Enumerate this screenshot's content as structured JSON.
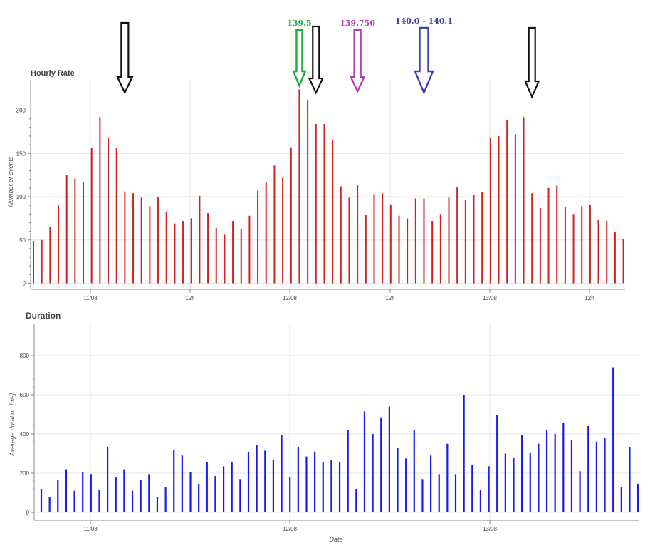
{
  "chart_data": [
    {
      "type": "bar",
      "title": "Hourly Rate",
      "ylabel": "Number of events",
      "xlabel": "",
      "ylim": [
        -7,
        235
      ],
      "yticks": [
        0,
        50,
        100,
        150,
        200
      ],
      "x_tick_labels": [
        "11/08",
        "12h",
        "12/08",
        "12h",
        "13/08",
        "12h"
      ],
      "grid": true,
      "color": "#cc2222",
      "values": [
        49,
        50,
        65,
        90,
        125,
        121,
        117,
        156,
        192,
        168,
        156,
        106,
        104,
        99,
        89,
        100,
        83,
        69,
        72,
        75,
        101,
        81,
        64,
        56,
        72,
        63,
        78,
        107,
        117,
        136,
        122,
        157,
        224,
        211,
        184,
        184,
        166,
        112,
        99,
        114,
        79,
        103,
        104,
        91,
        78,
        75,
        98,
        98,
        72,
        80,
        99,
        111,
        96,
        102,
        105,
        168,
        170,
        189,
        172,
        192,
        104,
        87,
        110,
        113,
        88,
        80,
        89,
        91,
        73,
        72,
        59,
        51
      ],
      "annotations": [
        {
          "text": "",
          "color": "#111111",
          "bar_index": 11
        },
        {
          "text": "139.5",
          "color": "#22aa44",
          "bar_index": 32
        },
        {
          "text": "",
          "color": "#111111",
          "bar_index": 34
        },
        {
          "text": "139.750",
          "color": "#b040b0",
          "bar_index": 39
        },
        {
          "text": "140.0 - 140.1",
          "color": "#3a44aa",
          "bar_index": 47
        },
        {
          "text": "",
          "color": "#111111",
          "bar_index": 60
        }
      ]
    },
    {
      "type": "bar",
      "title": "Duration",
      "ylabel": "Average duration [ms]",
      "xlabel": "Date",
      "ylim": [
        -40,
        960
      ],
      "yticks": [
        0,
        200,
        400,
        600,
        800
      ],
      "x_tick_labels": [
        "11/08",
        "12/08",
        "13/08"
      ],
      "grid": true,
      "color": "#1a1aee",
      "values": [
        120,
        80,
        165,
        220,
        110,
        205,
        195,
        115,
        335,
        180,
        220,
        110,
        165,
        195,
        80,
        130,
        320,
        290,
        205,
        145,
        255,
        185,
        235,
        255,
        170,
        310,
        345,
        315,
        270,
        395,
        180,
        335,
        285,
        310,
        255,
        265,
        255,
        420,
        120,
        515,
        400,
        485,
        540,
        330,
        275,
        420,
        170,
        290,
        195,
        350,
        195,
        600,
        240,
        115,
        235,
        495,
        300,
        280,
        395,
        305,
        350,
        420,
        400,
        455,
        370,
        210,
        440,
        360,
        380,
        740,
        130,
        335,
        145
      ]
    }
  ]
}
